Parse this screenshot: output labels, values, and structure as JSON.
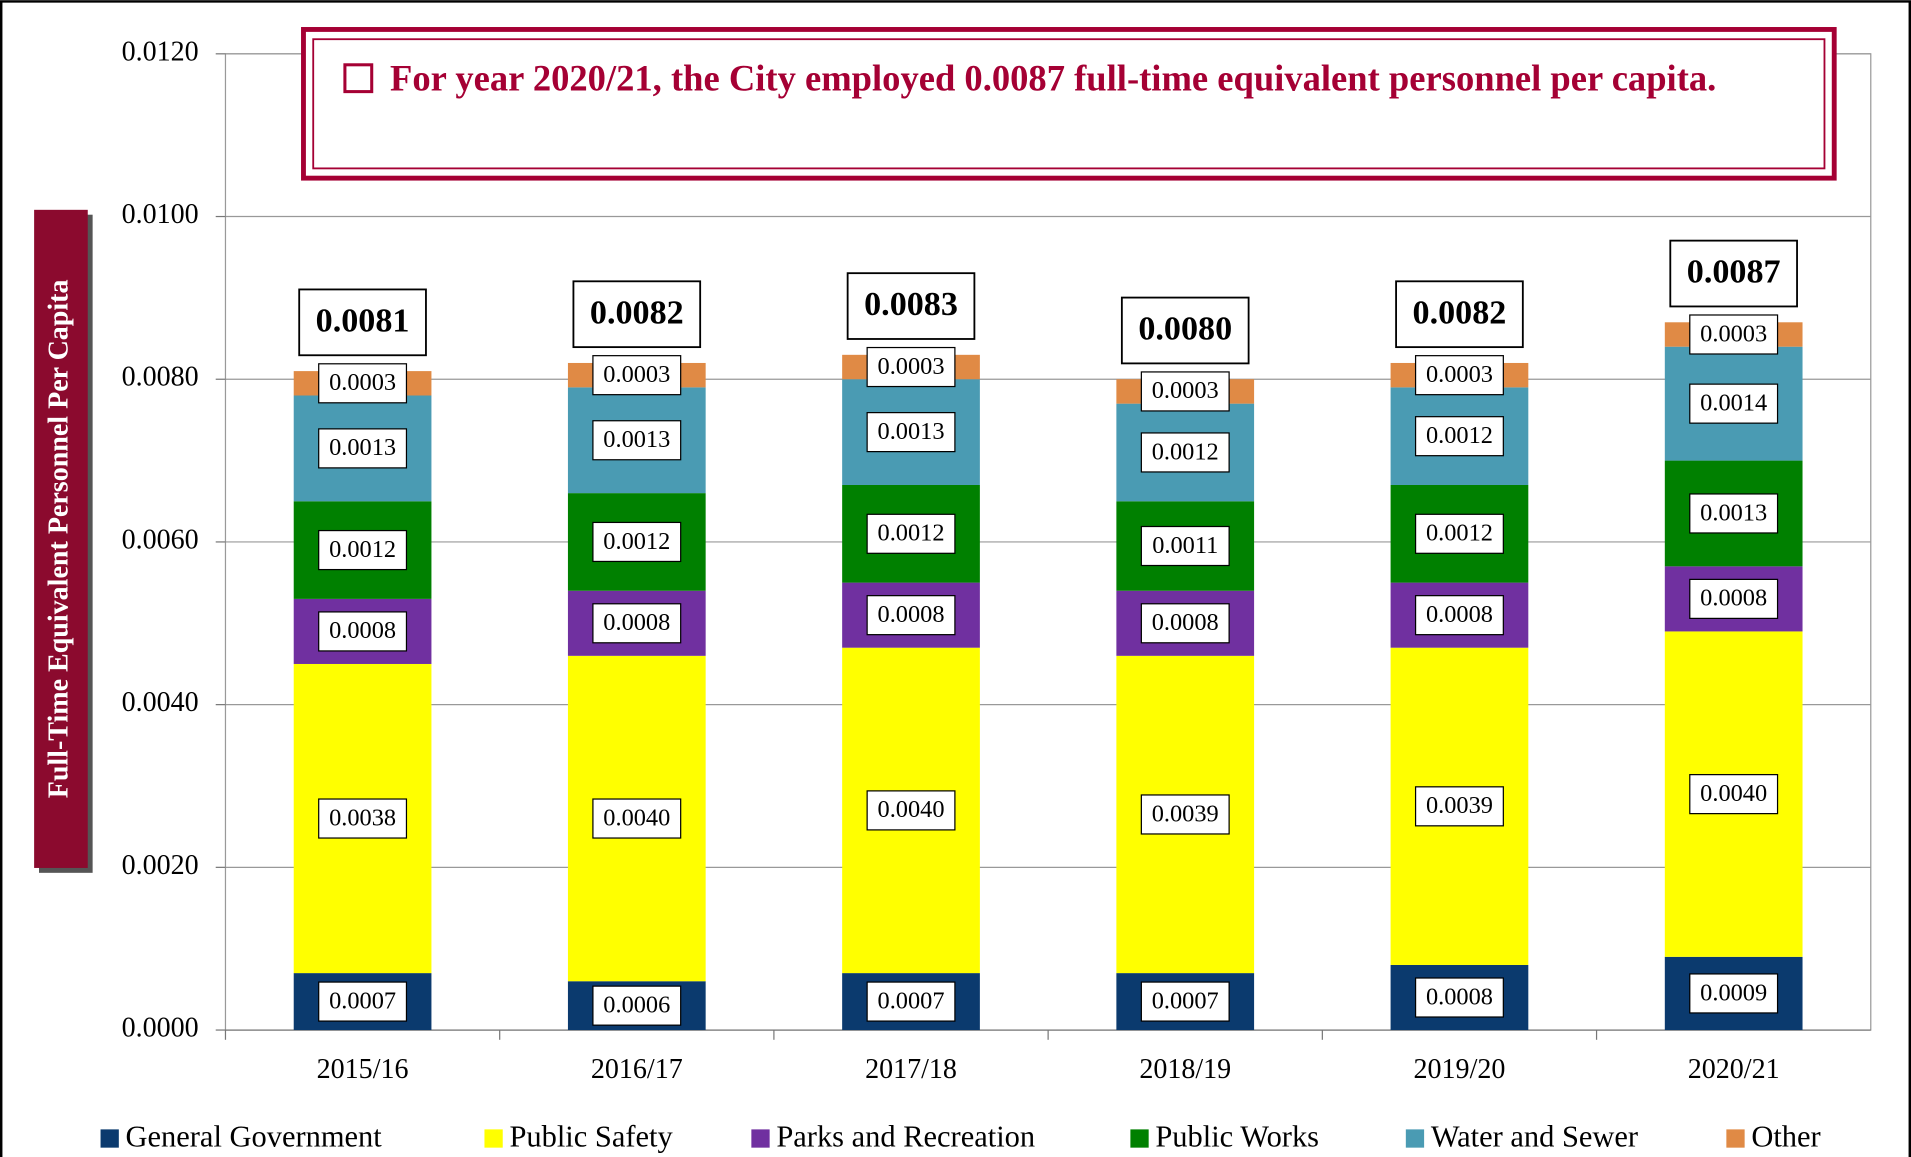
{
  "chart_data": {
    "type": "stacked_bar",
    "annotation": "For year 2020/21, the City employed 0.0087 full-time equivalent personnel per capita.",
    "y_label": "Full-Time Equivalent Personnel Per Capita",
    "categories": [
      "2015/16",
      "2016/17",
      "2017/18",
      "2018/19",
      "2019/20",
      "2020/21"
    ],
    "series": [
      {
        "name": "General Government",
        "color": "#0b3a6e",
        "values": [
          0.0007,
          0.0006,
          0.0007,
          0.0007,
          0.0008,
          0.0009
        ],
        "value_labels": [
          "0.0007",
          "0.0006",
          "0.0007",
          "0.0007",
          "0.0008",
          "0.0009"
        ]
      },
      {
        "name": "Public Safety",
        "color": "#ffff00",
        "values": [
          0.0038,
          0.004,
          0.004,
          0.0039,
          0.0039,
          0.004
        ],
        "value_labels": [
          "0.0038",
          "0.0040",
          "0.0040",
          "0.0039",
          "0.0039",
          "0.0040"
        ]
      },
      {
        "name": "Parks and Recreation",
        "color": "#7030a0",
        "values": [
          0.0008,
          0.0008,
          0.0008,
          0.0008,
          0.0008,
          0.0008
        ],
        "value_labels": [
          "0.0008",
          "0.0008",
          "0.0008",
          "0.0008",
          "0.0008",
          "0.0008"
        ]
      },
      {
        "name": "Public Works",
        "color": "#008000",
        "values": [
          0.0012,
          0.0012,
          0.0012,
          0.0011,
          0.0012,
          0.0013
        ],
        "value_labels": [
          "0.0012",
          "0.0012",
          "0.0012",
          "0.0011",
          "0.0012",
          "0.0013"
        ]
      },
      {
        "name": "Water and Sewer",
        "color": "#4a9bb3",
        "values": [
          0.0013,
          0.0013,
          0.0013,
          0.0012,
          0.0012,
          0.0014
        ],
        "value_labels": [
          "0.0013",
          "0.0013",
          "0.0013",
          "0.0012",
          "0.0012",
          "0.0014"
        ]
      },
      {
        "name": "Other",
        "color": "#e08a45",
        "values": [
          0.0003,
          0.0003,
          0.0003,
          0.0003,
          0.0003,
          0.0003
        ],
        "value_labels": [
          "0.0003",
          "0.0003",
          "0.0003",
          "0.0003",
          "0.0003",
          "0.0003"
        ]
      }
    ],
    "totals": [
      0.0081,
      0.0082,
      0.0083,
      0.008,
      0.0082,
      0.0087
    ],
    "total_labels": [
      "0.0081",
      "0.0082",
      "0.0083",
      "0.0080",
      "0.0082",
      "0.0087"
    ],
    "ylim": [
      0,
      0.012
    ],
    "yticks": [
      {
        "value": 0,
        "label": "0.0000"
      },
      {
        "value": 0.002,
        "label": "0.0020"
      },
      {
        "value": 0.004,
        "label": "0.0040"
      },
      {
        "value": 0.006,
        "label": "0.0060"
      },
      {
        "value": 0.008,
        "label": "0.0080"
      },
      {
        "value": 0.01,
        "label": "0.0100"
      },
      {
        "value": 0.012,
        "label": "0.0120"
      }
    ],
    "grid": true,
    "legend": "bottom"
  }
}
